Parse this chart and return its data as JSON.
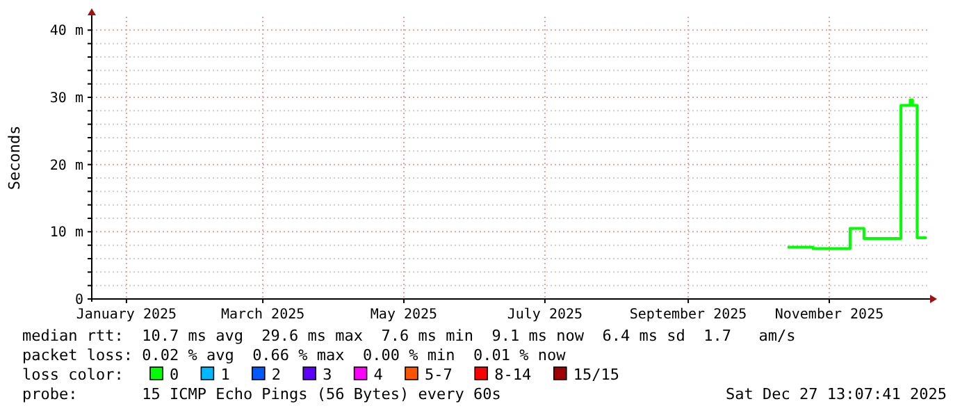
{
  "chart_data": {
    "type": "step",
    "ylabel": "Seconds",
    "legend_title": "loss color:",
    "x": [
      "2025-10-14",
      "2025-10-25",
      "2025-11-10",
      "2025-11-16",
      "2025-12-02",
      "2025-12-06",
      "2025-12-07",
      "2025-12-09",
      "2025-12-13"
    ],
    "series": [
      {
        "name": "0",
        "color": "#00ff00",
        "values": [
          7.7,
          7.5,
          10.5,
          9,
          28.8,
          29.6,
          28.8,
          9.1,
          9.1
        ]
      },
      {
        "name": "1",
        "color": "#00b8ff",
        "values": [
          null,
          null,
          null,
          null,
          null,
          null,
          null,
          null,
          null
        ]
      },
      {
        "name": "2",
        "color": "#0059ff",
        "values": [
          null,
          null,
          null,
          null,
          null,
          null,
          null,
          null,
          null
        ]
      },
      {
        "name": "3",
        "color": "#5e00ff",
        "values": [
          null,
          null,
          null,
          null,
          null,
          null,
          null,
          null,
          null
        ]
      },
      {
        "name": "4",
        "color": "#ff00ff",
        "values": [
          null,
          null,
          null,
          null,
          null,
          null,
          null,
          null,
          null
        ]
      },
      {
        "name": "5-7",
        "color": "#ff5500",
        "values": [
          null,
          null,
          null,
          null,
          null,
          null,
          null,
          null,
          null
        ]
      },
      {
        "name": "8-14",
        "color": "#ff0000",
        "values": [
          null,
          null,
          null,
          null,
          null,
          null,
          null,
          null,
          null
        ]
      },
      {
        "name": "15/15",
        "color": "#a10000",
        "values": [
          null,
          null,
          null,
          null,
          null,
          null,
          null,
          null,
          null
        ]
      }
    ],
    "xlim": [
      "2024-12-17",
      "2025-12-14"
    ],
    "xticks": [
      {
        "value": "2025-01-01",
        "label": "January 2025"
      },
      {
        "value": "2025-03-01",
        "label": "March 2025"
      },
      {
        "value": "2025-05-01",
        "label": "May 2025"
      },
      {
        "value": "2025-07-01",
        "label": "July 2025"
      },
      {
        "value": "2025-09-01",
        "label": "September 2025"
      },
      {
        "value": "2025-11-01",
        "label": "November 2025"
      }
    ],
    "ylim": [
      0,
      42
    ],
    "yticks": [
      {
        "value": 0,
        "label": "0"
      },
      {
        "value": 2,
        "label": null
      },
      {
        "value": 4,
        "label": null
      },
      {
        "value": 6,
        "label": null
      },
      {
        "value": 8,
        "label": null
      },
      {
        "value": 10,
        "label": "10 m"
      },
      {
        "value": 12,
        "label": null
      },
      {
        "value": 14,
        "label": null
      },
      {
        "value": 16,
        "label": null
      },
      {
        "value": 18,
        "label": null
      },
      {
        "value": 20,
        "label": "20 m"
      },
      {
        "value": 22,
        "label": null
      },
      {
        "value": 24,
        "label": null
      },
      {
        "value": 26,
        "label": null
      },
      {
        "value": 28,
        "label": null
      },
      {
        "value": 30,
        "label": "30 m"
      },
      {
        "value": 32,
        "label": null
      },
      {
        "value": 34,
        "label": null
      },
      {
        "value": 36,
        "label": null
      },
      {
        "value": 38,
        "label": null
      },
      {
        "value": 40,
        "label": "40 m"
      }
    ],
    "grid": true,
    "legend": "bottom",
    "line_style": "solid",
    "annotations": [
      "median rtt:  10.7 ms avg  29.6 ms max  7.6 ms min  9.1 ms now  6.4 ms sd  1.7   am/s",
      "packet loss: 0.02 % avg  0.66 % max  0.00 % min  0.01 % now",
      "probe:       15 ICMP Echo Pings (56 Bytes) every 60s",
      "Sat Dec 27 13:07:41 2025"
    ]
  }
}
